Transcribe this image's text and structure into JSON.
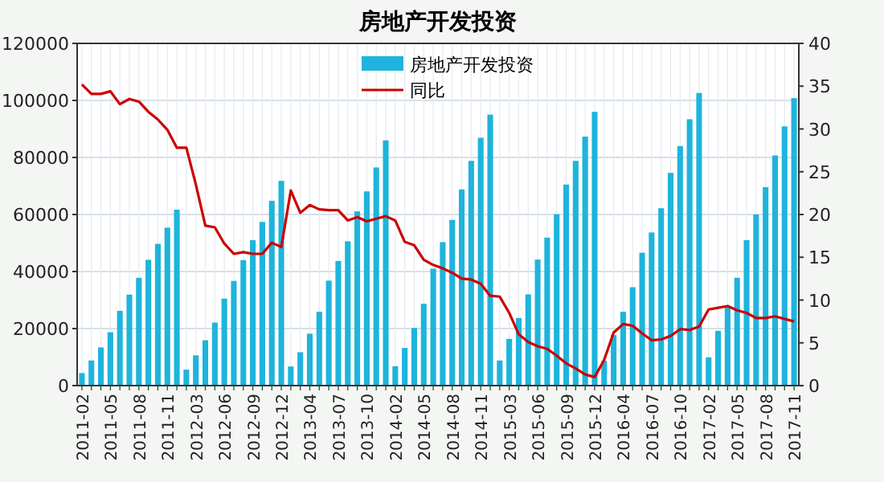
{
  "chart_data": {
    "type": "bar",
    "title": "房地产开发投资",
    "categories": [
      "2011-02",
      null,
      null,
      "2011-05",
      null,
      null,
      "2011-08",
      null,
      null,
      "2011-11",
      null,
      null,
      "2012-03",
      null,
      null,
      "2012-06",
      null,
      null,
      "2012-09",
      null,
      null,
      "2012-12",
      null,
      null,
      "2013-04",
      null,
      null,
      "2013-07",
      null,
      null,
      "2013-10",
      null,
      null,
      "2014-02",
      null,
      null,
      "2014-05",
      null,
      null,
      "2014-08",
      null,
      null,
      "2014-11",
      null,
      null,
      "2015-03",
      null,
      null,
      "2015-06",
      null,
      null,
      "2015-09",
      null,
      null,
      "2015-12",
      null,
      null,
      "2016-04",
      null,
      null,
      "2016-07",
      null,
      null,
      "2016-10",
      null,
      null,
      "2017-02",
      null,
      null,
      "2017-05",
      null,
      null,
      "2017-08",
      null,
      null,
      "2017-11"
    ],
    "series": [
      {
        "name": "房地产开发投资",
        "color": "#1eb4dc",
        "values": [
          4400,
          8800,
          13400,
          18700,
          26200,
          31900,
          37800,
          44100,
          49700,
          55400,
          61700,
          5600,
          10600,
          15900,
          22100,
          30500,
          36700,
          44000,
          51000,
          57400,
          64800,
          71800,
          6700,
          11700,
          18200,
          25900,
          36800,
          43700,
          50600,
          61100,
          68100,
          76500,
          86000,
          6800,
          13200,
          20200,
          28700,
          41000,
          50300,
          58100,
          68800,
          78800,
          86900,
          95000,
          8800,
          16400,
          23700,
          32000,
          44200,
          51900,
          60100,
          70500,
          78800,
          87300,
          96000,
          8700,
          17700,
          25900,
          34500,
          46600,
          53700,
          62200,
          74600,
          84000,
          93400,
          102600,
          9900,
          19200,
          27900,
          37800,
          51000,
          60000,
          69600,
          80700,
          90900,
          100800
        ]
      },
      {
        "name": "同比",
        "type": "line",
        "axis": "y2",
        "color": "#cc0000",
        "values": [
          35.2,
          34.1,
          34.1,
          34.4,
          32.9,
          33.5,
          33.2,
          32.0,
          31.1,
          29.9,
          27.8,
          27.8,
          23.5,
          18.7,
          18.5,
          16.6,
          15.4,
          15.6,
          15.4,
          15.4,
          16.7,
          16.2,
          22.8,
          20.2,
          21.1,
          20.6,
          20.5,
          20.5,
          19.3,
          19.7,
          19.2,
          19.5,
          19.8,
          19.3,
          16.8,
          16.4,
          14.7,
          14.1,
          13.7,
          13.2,
          12.5,
          12.4,
          11.9,
          10.5,
          10.4,
          8.5,
          6.0,
          5.1,
          4.6,
          4.3,
          3.5,
          2.6,
          2.0,
          1.3,
          1.0,
          3.0,
          6.2,
          7.2,
          7.0,
          6.1,
          5.3,
          5.4,
          5.8,
          6.6,
          6.5,
          6.9,
          8.9,
          9.1,
          9.3,
          8.8,
          8.5,
          7.9,
          7.9,
          8.1,
          7.8,
          7.5
        ]
      }
    ],
    "ylim": [
      0,
      120000
    ],
    "yticks": [
      0,
      20000,
      40000,
      60000,
      80000,
      100000,
      120000
    ],
    "y2lim": [
      0,
      40
    ],
    "y2ticks": [
      0,
      5,
      10,
      15,
      20,
      25,
      30,
      35,
      40
    ],
    "grid": true,
    "legend": "top",
    "marker": "none",
    "line_style": "solid"
  }
}
